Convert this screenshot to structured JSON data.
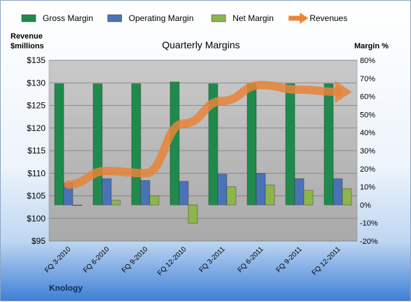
{
  "chart_data": {
    "type": "bar",
    "title": "Quarterly Margins",
    "categories": [
      "FQ 3-2010",
      "FQ 6-2010",
      "FQ 9-2010",
      "FQ 12-2010",
      "FQ 3-2011",
      "FQ 6-2011",
      "FQ 9-2011",
      "FQ 12-2011"
    ],
    "series": [
      {
        "name": "Gross Margin",
        "axis": "right",
        "kind": "bar",
        "color": "#1f8a4c",
        "values": [
          67,
          67,
          67,
          68,
          67,
          67,
          67,
          67
        ]
      },
      {
        "name": "Operating Margin",
        "axis": "right",
        "kind": "bar",
        "color": "#4a73b6",
        "values": [
          12,
          14.5,
          13.5,
          13,
          17,
          17.5,
          14.5,
          14.5
        ]
      },
      {
        "name": "Net Margin",
        "axis": "right",
        "kind": "bar",
        "color": "#8db54b",
        "values": [
          -0.5,
          2.5,
          5,
          -10,
          10,
          11,
          8,
          9
        ]
      },
      {
        "name": "Revenues",
        "axis": "left",
        "kind": "line",
        "color": "#e8843a",
        "values": [
          107.5,
          110.5,
          110,
          121,
          126,
          129.5,
          128.5,
          128
        ]
      }
    ],
    "ylabel": "Revenue\n$millions",
    "y2label": "Margin %",
    "ylim": [
      95,
      135
    ],
    "yticks": [
      "$95",
      "$100",
      "$105",
      "$110",
      "$115",
      "$120",
      "$125",
      "$130",
      "$135"
    ],
    "y2lim": [
      -20,
      80
    ],
    "y2ticks": [
      "-20%",
      "-10%",
      "0%",
      "10%",
      "20%",
      "30%",
      "40%",
      "50%",
      "60%",
      "70%",
      "80%"
    ],
    "legend_position": "top",
    "grid": true,
    "footer": "Knology"
  }
}
